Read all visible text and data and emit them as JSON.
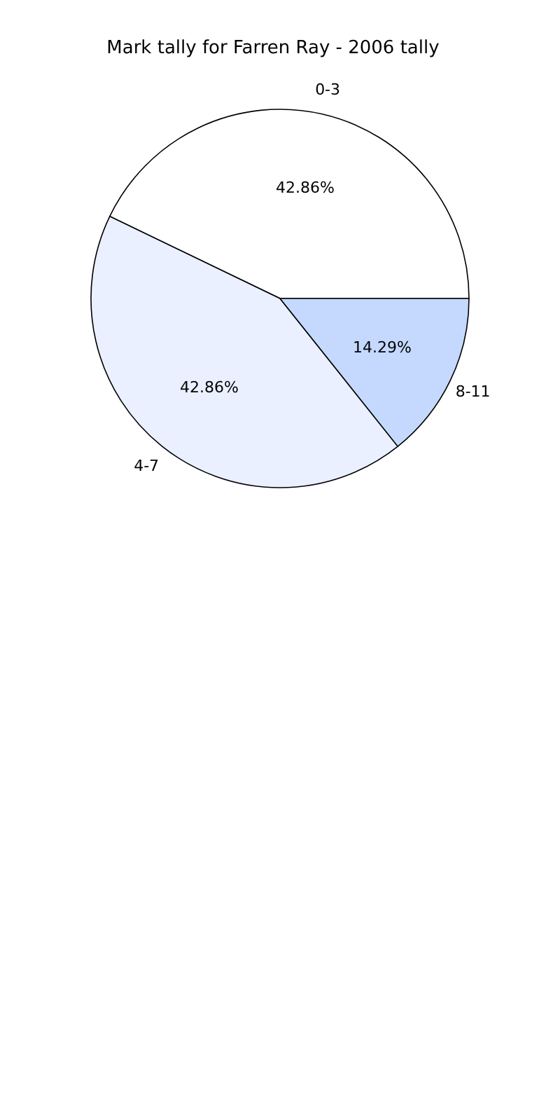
{
  "chart_data": {
    "type": "pie",
    "title": "Mark tally for Farren Ray - 2006 tally",
    "categories": [
      "0-3",
      "4-7",
      "8-11"
    ],
    "values": [
      42.86,
      42.86,
      14.29
    ],
    "value_labels": [
      "42.86%",
      "42.86%",
      "14.29%"
    ],
    "colors": [
      "#ffffff",
      "#eaf0ff",
      "#c5d9ff"
    ]
  }
}
